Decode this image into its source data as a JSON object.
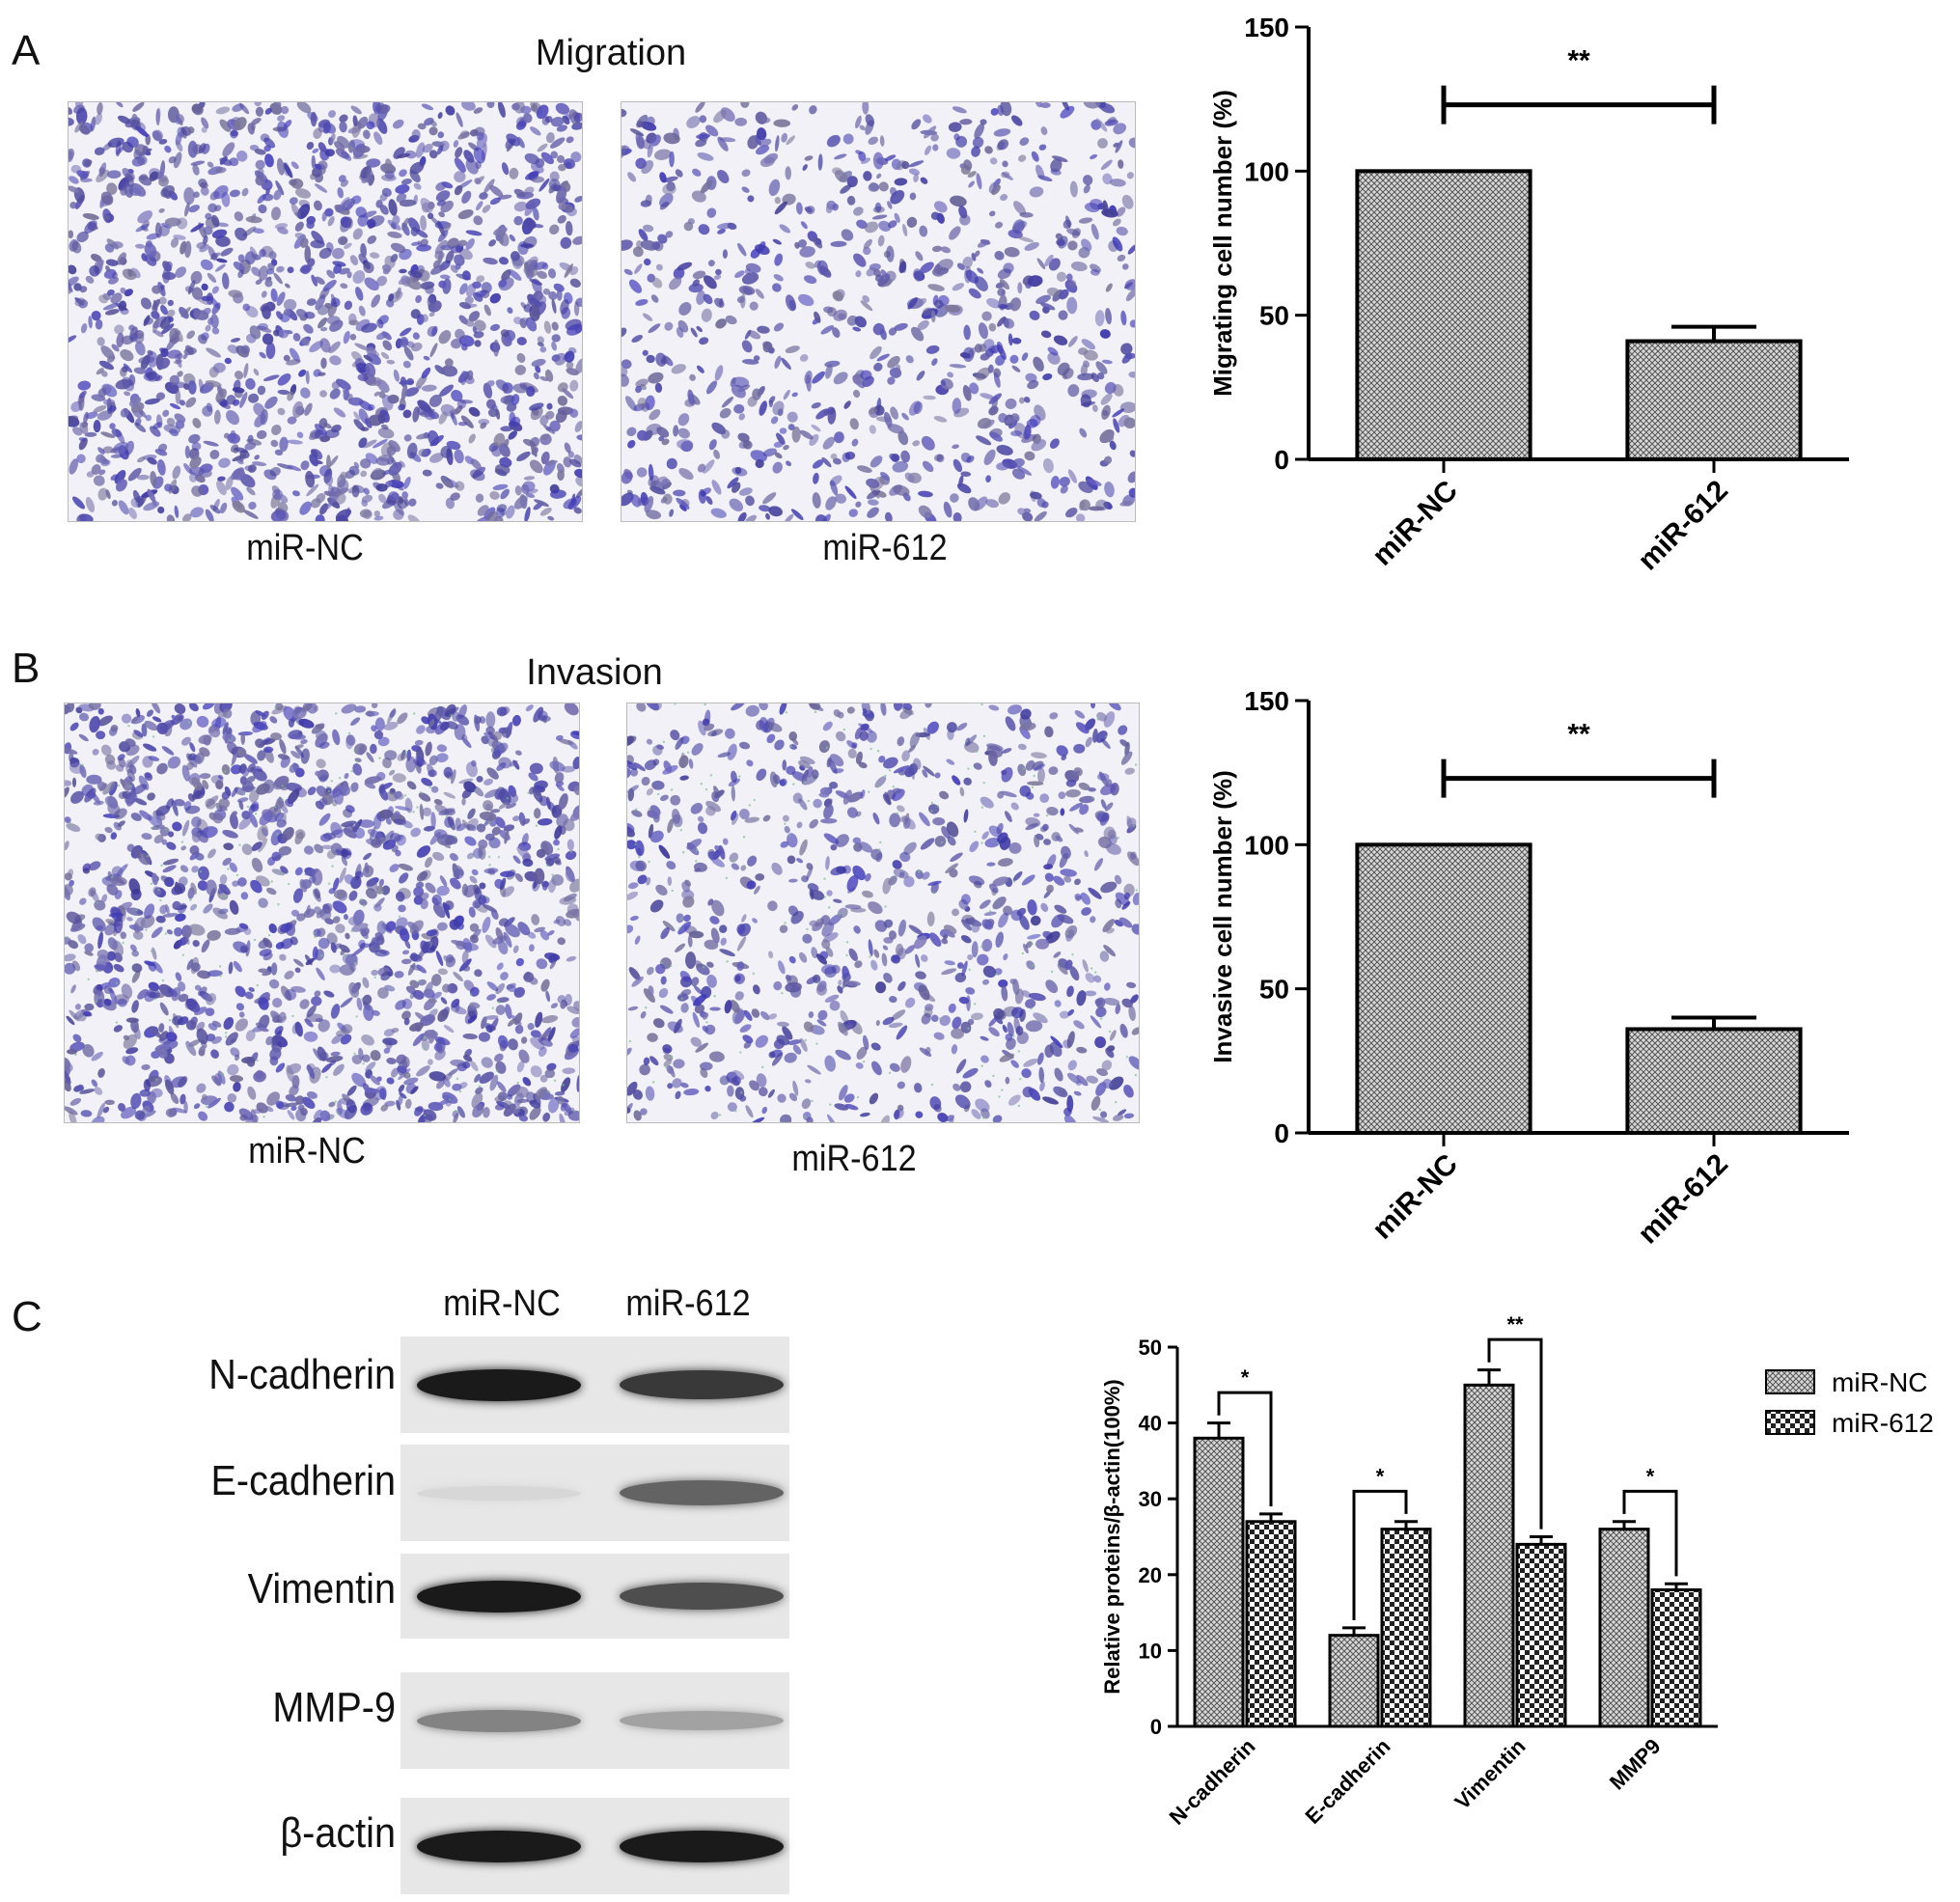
{
  "panels": {
    "A": {
      "letter": "A",
      "title": "Migration",
      "images": [
        {
          "caption": "miR-NC",
          "density": 1.0
        },
        {
          "caption": "miR-612",
          "density": 0.58
        }
      ],
      "chart_data": {
        "type": "bar",
        "categories": [
          "miR-NC",
          "miR-612"
        ],
        "values": [
          100,
          41
        ],
        "errors": [
          0,
          5
        ],
        "ylabel": "Migrating cell number (%)",
        "ylim": [
          0,
          150
        ],
        "yticks": [
          "0",
          "50",
          "100",
          "150"
        ],
        "significance": "**"
      }
    },
    "B": {
      "letter": "B",
      "title": "Invasion",
      "images": [
        {
          "caption": "miR-NC",
          "density": 1.0
        },
        {
          "caption": "miR-612",
          "density": 0.6
        }
      ],
      "chart_data": {
        "type": "bar",
        "categories": [
          "miR-NC",
          "miR-612"
        ],
        "values": [
          100,
          36
        ],
        "errors": [
          0,
          4
        ],
        "ylabel": "Invasive cell number (%)",
        "ylim": [
          0,
          150
        ],
        "yticks": [
          "0",
          "50",
          "100",
          "150"
        ],
        "significance": "**"
      }
    },
    "C": {
      "letter": "C",
      "blot": {
        "lanes": [
          "miR-NC",
          "miR-612"
        ],
        "rows": [
          {
            "label": "N-cadherin",
            "intensity": [
              0.95,
              0.8
            ]
          },
          {
            "label": "E-cadherin",
            "intensity": [
              0.05,
              0.6
            ]
          },
          {
            "label": "Vimentin",
            "intensity": [
              0.95,
              0.7
            ]
          },
          {
            "label": "MMP-9",
            "intensity": [
              0.45,
              0.3
            ]
          },
          {
            "label": "β-actin",
            "intensity": [
              0.95,
              0.95
            ]
          }
        ]
      },
      "chart_data": {
        "type": "bar",
        "categories": [
          "N-cadherin",
          "E-cadherin",
          "Vimentin",
          "MMP9"
        ],
        "series": [
          {
            "name": "miR-NC",
            "values": [
              38,
              12,
              45,
              26
            ],
            "errors": [
              2,
              1,
              2,
              1
            ]
          },
          {
            "name": "miR-612",
            "values": [
              27,
              26,
              24,
              18
            ],
            "errors": [
              1,
              1,
              1,
              0.8
            ]
          }
        ],
        "ylabel": "Relative proteins/β-actin(100%)",
        "ylim": [
          0,
          50
        ],
        "yticks": [
          "0",
          "10",
          "20",
          "30",
          "40",
          "50"
        ],
        "significance": [
          "*",
          "*",
          "**",
          "*"
        ],
        "legend_position": "top-right"
      }
    }
  }
}
